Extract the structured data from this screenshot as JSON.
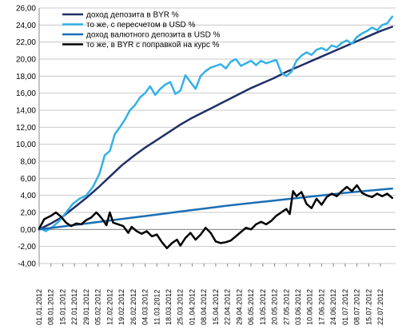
{
  "chart_data": {
    "type": "line",
    "title": "",
    "xlabel": "",
    "ylabel": "",
    "ylim": [
      -4,
      26
    ],
    "yticks": [
      "-4,00",
      "-2,00",
      "0,00",
      "2,00",
      "4,00",
      "6,00",
      "8,00",
      "10,00",
      "12,00",
      "14,00",
      "16,00",
      "18,00",
      "20,00",
      "22,00",
      "24,00",
      "26,00"
    ],
    "grid": "horizontal",
    "legend_position": "top-left",
    "x_dates": [
      "01.01.2012",
      "08.01.2012",
      "15.01.2012",
      "22.01.2012",
      "29.01.2012",
      "05.02.2012",
      "12.02.2012",
      "19.02.2012",
      "26.02.2012",
      "04.03.2012",
      "11.03.2012",
      "18.03.2012",
      "25.03.2012",
      "01.04.2012",
      "08.04.2012",
      "15.04.2012",
      "22.04.2012",
      "29.04.2012",
      "06.05.2012",
      "13.05.2012",
      "20.05.2012",
      "27.05.2012",
      "03.06.2012",
      "10.06.2012",
      "17.06.2012",
      "24.06.2012",
      "01.07.2012",
      "08.07.2012",
      "15.07.2012",
      "22.07.2012"
    ],
    "series": [
      {
        "name": "доход депозита в BYR %",
        "color": "#1f2f66",
        "width": 2.5,
        "points": [
          [
            "01.01.2012",
            0.0
          ],
          [
            "08.01.2012",
            0.7
          ],
          [
            "15.01.2012",
            1.5
          ],
          [
            "22.01.2012",
            2.6
          ],
          [
            "29.01.2012",
            3.7
          ],
          [
            "05.02.2012",
            4.9
          ],
          [
            "12.02.2012",
            6.2
          ],
          [
            "19.02.2012",
            7.5
          ],
          [
            "26.02.2012",
            8.6
          ],
          [
            "04.03.2012",
            9.6
          ],
          [
            "11.03.2012",
            10.5
          ],
          [
            "18.03.2012",
            11.4
          ],
          [
            "25.03.2012",
            12.3
          ],
          [
            "01.04.2012",
            13.1
          ],
          [
            "08.04.2012",
            13.8
          ],
          [
            "15.04.2012",
            14.5
          ],
          [
            "22.04.2012",
            15.2
          ],
          [
            "29.04.2012",
            15.9
          ],
          [
            "06.05.2012",
            16.6
          ],
          [
            "13.05.2012",
            17.2
          ],
          [
            "20.05.2012",
            17.8
          ],
          [
            "27.05.2012",
            18.5
          ],
          [
            "03.06.2012",
            19.1
          ],
          [
            "10.06.2012",
            19.7
          ],
          [
            "17.06.2012",
            20.3
          ],
          [
            "24.06.2012",
            20.9
          ],
          [
            "01.07.2012",
            21.5
          ],
          [
            "08.07.2012",
            22.1
          ],
          [
            "15.07.2012",
            22.7
          ],
          [
            "22.07.2012",
            23.3
          ],
          [
            "29.07.2012",
            23.8
          ]
        ]
      },
      {
        "name": "то же, с пересчетом в USD %",
        "color": "#33b1e6",
        "width": 2.5,
        "points": [
          [
            "01.01.2012",
            0.2
          ],
          [
            "05.01.2012",
            -0.2
          ],
          [
            "09.01.2012",
            0.3
          ],
          [
            "13.01.2012",
            1.0
          ],
          [
            "17.01.2012",
            2.0
          ],
          [
            "21.01.2012",
            3.0
          ],
          [
            "25.01.2012",
            3.6
          ],
          [
            "29.01.2012",
            4.0
          ],
          [
            "02.02.2012",
            5.0
          ],
          [
            "06.02.2012",
            6.6
          ],
          [
            "09.02.2012",
            8.7
          ],
          [
            "12.02.2012",
            9.2
          ],
          [
            "15.02.2012",
            11.2
          ],
          [
            "18.02.2012",
            12.0
          ],
          [
            "21.02.2012",
            12.9
          ],
          [
            "24.02.2012",
            14.0
          ],
          [
            "27.02.2012",
            14.6
          ],
          [
            "01.03.2012",
            15.5
          ],
          [
            "04.03.2012",
            16.0
          ],
          [
            "07.03.2012",
            16.8
          ],
          [
            "10.03.2012",
            15.8
          ],
          [
            "13.03.2012",
            16.5
          ],
          [
            "16.03.2012",
            17.0
          ],
          [
            "19.03.2012",
            17.3
          ],
          [
            "22.03.2012",
            15.9
          ],
          [
            "25.03.2012",
            16.3
          ],
          [
            "28.03.2012",
            18.1
          ],
          [
            "31.03.2012",
            17.3
          ],
          [
            "03.04.2012",
            16.5
          ],
          [
            "06.04.2012",
            18.0
          ],
          [
            "09.04.2012",
            18.6
          ],
          [
            "12.04.2012",
            19.0
          ],
          [
            "15.04.2012",
            19.2
          ],
          [
            "18.04.2012",
            19.4
          ],
          [
            "21.04.2012",
            18.9
          ],
          [
            "24.04.2012",
            19.7
          ],
          [
            "27.04.2012",
            20.0
          ],
          [
            "30.04.2012",
            19.2
          ],
          [
            "03.05.2012",
            19.5
          ],
          [
            "06.05.2012",
            19.8
          ],
          [
            "09.05.2012",
            19.3
          ],
          [
            "12.05.2012",
            19.8
          ],
          [
            "15.05.2012",
            19.5
          ],
          [
            "18.05.2012",
            19.7
          ],
          [
            "21.05.2012",
            19.9
          ],
          [
            "24.05.2012",
            18.4
          ],
          [
            "27.05.2012",
            18.0
          ],
          [
            "30.05.2012",
            18.5
          ],
          [
            "02.06.2012",
            19.8
          ],
          [
            "05.06.2012",
            20.4
          ],
          [
            "08.06.2012",
            20.8
          ],
          [
            "11.06.2012",
            20.5
          ],
          [
            "14.06.2012",
            21.1
          ],
          [
            "17.06.2012",
            21.3
          ],
          [
            "20.06.2012",
            21.0
          ],
          [
            "23.06.2012",
            21.6
          ],
          [
            "26.06.2012",
            21.4
          ],
          [
            "29.06.2012",
            21.9
          ],
          [
            "02.07.2012",
            22.2
          ],
          [
            "05.07.2012",
            21.8
          ],
          [
            "08.07.2012",
            22.6
          ],
          [
            "11.07.2012",
            23.0
          ],
          [
            "14.07.2012",
            23.3
          ],
          [
            "17.07.2012",
            23.7
          ],
          [
            "20.07.2012",
            23.4
          ],
          [
            "23.07.2012",
            24.0
          ],
          [
            "26.07.2012",
            24.2
          ],
          [
            "29.07.2012",
            25.0
          ]
        ]
      },
      {
        "name": "доход валютного депозита в USD %",
        "color": "#1a6fb4",
        "width": 2.5,
        "points": [
          [
            "01.01.2012",
            0.0
          ],
          [
            "15.01.2012",
            0.35
          ],
          [
            "29.01.2012",
            0.7
          ],
          [
            "12.02.2012",
            1.05
          ],
          [
            "26.02.2012",
            1.4
          ],
          [
            "11.03.2012",
            1.75
          ],
          [
            "25.03.2012",
            2.1
          ],
          [
            "08.04.2012",
            2.45
          ],
          [
            "22.04.2012",
            2.8
          ],
          [
            "06.05.2012",
            3.1
          ],
          [
            "20.05.2012",
            3.4
          ],
          [
            "03.06.2012",
            3.7
          ],
          [
            "17.06.2012",
            4.0
          ],
          [
            "01.07.2012",
            4.3
          ],
          [
            "15.07.2012",
            4.55
          ],
          [
            "29.07.2012",
            4.8
          ]
        ]
      },
      {
        "name": "то же, в BYR с поправкой на курс %",
        "color": "#000000",
        "width": 2.5,
        "points": [
          [
            "01.01.2012",
            0.1
          ],
          [
            "04.01.2012",
            1.2
          ],
          [
            "08.01.2012",
            1.6
          ],
          [
            "11.01.2012",
            2.0
          ],
          [
            "14.01.2012",
            1.5
          ],
          [
            "17.01.2012",
            0.8
          ],
          [
            "20.01.2012",
            0.4
          ],
          [
            "23.01.2012",
            0.7
          ],
          [
            "26.01.2012",
            0.6
          ],
          [
            "29.01.2012",
            1.1
          ],
          [
            "01.02.2012",
            1.4
          ],
          [
            "04.02.2012",
            2.0
          ],
          [
            "06.02.2012",
            1.6
          ],
          [
            "08.02.2012",
            1.1
          ],
          [
            "10.02.2012",
            0.5
          ],
          [
            "12.02.2012",
            2.0
          ],
          [
            "14.02.2012",
            0.8
          ],
          [
            "17.02.2012",
            0.6
          ],
          [
            "20.02.2012",
            0.4
          ],
          [
            "23.02.2012",
            -0.4
          ],
          [
            "25.02.2012",
            0.3
          ],
          [
            "28.02.2012",
            -0.2
          ],
          [
            "02.03.2012",
            -0.5
          ],
          [
            "05.03.2012",
            -0.2
          ],
          [
            "08.03.2012",
            -0.8
          ],
          [
            "11.03.2012",
            -0.6
          ],
          [
            "14.03.2012",
            -1.5
          ],
          [
            "17.03.2012",
            -2.2
          ],
          [
            "20.03.2012",
            -1.6
          ],
          [
            "23.03.2012",
            -1.2
          ],
          [
            "25.03.2012",
            -1.9
          ],
          [
            "28.03.2012",
            -1.0
          ],
          [
            "31.03.2012",
            -0.4
          ],
          [
            "03.04.2012",
            -1.2
          ],
          [
            "06.04.2012",
            -0.6
          ],
          [
            "09.04.2012",
            0.2
          ],
          [
            "12.04.2012",
            -0.4
          ],
          [
            "15.04.2012",
            -1.4
          ],
          [
            "18.04.2012",
            -1.6
          ],
          [
            "21.04.2012",
            -1.5
          ],
          [
            "24.04.2012",
            -1.3
          ],
          [
            "27.04.2012",
            -0.8
          ],
          [
            "30.04.2012",
            -0.3
          ],
          [
            "03.05.2012",
            0.2
          ],
          [
            "06.05.2012",
            0.0
          ],
          [
            "09.05.2012",
            0.6
          ],
          [
            "12.05.2012",
            0.9
          ],
          [
            "15.05.2012",
            0.6
          ],
          [
            "18.05.2012",
            1.0
          ],
          [
            "21.05.2012",
            1.6
          ],
          [
            "24.05.2012",
            2.0
          ],
          [
            "27.05.2012",
            2.4
          ],
          [
            "29.05.2012",
            1.8
          ],
          [
            "31.05.2012",
            4.5
          ],
          [
            "02.06.2012",
            3.9
          ],
          [
            "05.06.2012",
            4.4
          ],
          [
            "08.06.2012",
            3.0
          ],
          [
            "11.06.2012",
            2.5
          ],
          [
            "14.06.2012",
            3.6
          ],
          [
            "17.06.2012",
            2.9
          ],
          [
            "20.06.2012",
            3.8
          ],
          [
            "23.06.2012",
            4.2
          ],
          [
            "26.06.2012",
            3.9
          ],
          [
            "29.06.2012",
            4.5
          ],
          [
            "02.07.2012",
            5.0
          ],
          [
            "05.07.2012",
            4.5
          ],
          [
            "08.07.2012",
            5.2
          ],
          [
            "11.07.2012",
            4.3
          ],
          [
            "14.07.2012",
            4.0
          ],
          [
            "17.07.2012",
            3.8
          ],
          [
            "20.07.2012",
            4.2
          ],
          [
            "23.07.2012",
            3.9
          ],
          [
            "26.07.2012",
            4.2
          ],
          [
            "29.07.2012",
            3.7
          ]
        ]
      }
    ]
  }
}
